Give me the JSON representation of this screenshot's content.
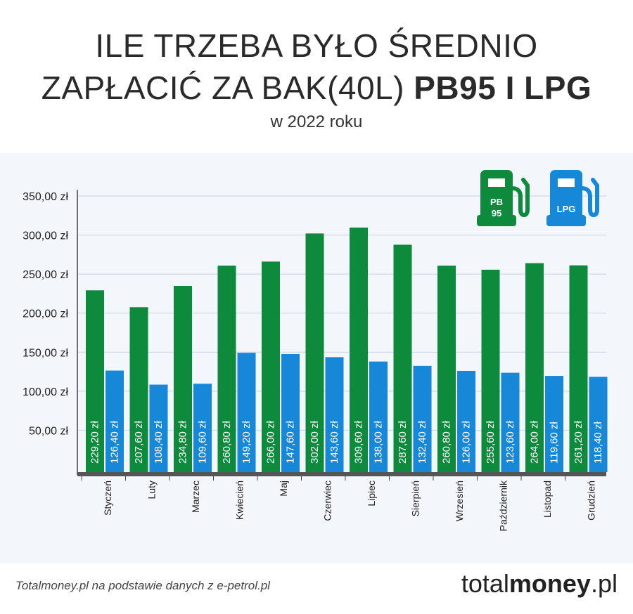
{
  "title_line1": "ILE TRZEBA BYŁO ŚREDNIO",
  "title_line2_a": "ZAPŁACIĆ ZA BAK(40L) ",
  "title_line2_b": "PB95 I LPG",
  "subtitle": "w 2022 roku",
  "source": "Totalmoney.pl na podstawie danych z e-petrol.pl",
  "brand_a": "total",
  "brand_b": "money",
  "brand_c": ".pl",
  "colors": {
    "pb95": "#0d8a3c",
    "lpg": "#1787d8"
  },
  "legend": {
    "pb95": [
      "PB",
      "95"
    ],
    "lpg": "LPG"
  },
  "chart_data": {
    "type": "bar",
    "title": "ILE TRZEBA BYŁO ŚREDNIO ZAPŁACIĆ ZA BAK(40L) PB95 I LPG",
    "categories": [
      "Styczeń",
      "Luty",
      "Marzec",
      "Kwiecień",
      "Maj",
      "Czerwiec",
      "Lipiec",
      "Sierpień",
      "Wrzesień",
      "Październik",
      "Listopad",
      "Grudzień"
    ],
    "series": [
      {
        "name": "PB95",
        "values": [
          229.2,
          207.6,
          234.8,
          260.8,
          266.0,
          302.0,
          309.6,
          287.6,
          260.8,
          255.6,
          264.0,
          261.2
        ]
      },
      {
        "name": "LPG",
        "values": [
          126.4,
          108.4,
          109.6,
          149.2,
          147.6,
          143.6,
          138.0,
          132.4,
          126.0,
          123.6,
          119.6,
          118.4
        ]
      }
    ],
    "yticks": [
      50,
      100,
      150,
      200,
      250,
      300,
      350
    ],
    "ylim": [
      0,
      350
    ],
    "unit": "zł",
    "grid": true
  }
}
